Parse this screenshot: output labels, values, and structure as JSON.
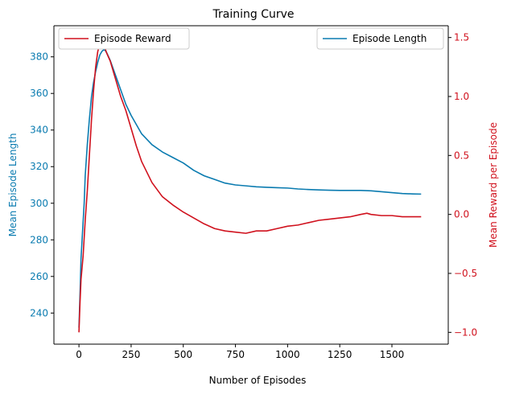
{
  "chart_data": {
    "type": "line",
    "title": "Training Curve",
    "xlabel": "Number of Episodes",
    "ylabel_left": "Mean Episode Length",
    "ylabel_right": "Mean Reward per Episode",
    "xlim": [
      -120,
      1770
    ],
    "ylim_left": [
      223,
      397
    ],
    "ylim_right": [
      -1.1,
      1.6
    ],
    "x_ticks": [
      0,
      250,
      500,
      750,
      1000,
      1250,
      1500
    ],
    "y_ticks_left": [
      240,
      260,
      280,
      300,
      320,
      340,
      360,
      380
    ],
    "y_ticks_right": [
      -1.0,
      -0.5,
      0.0,
      0.5,
      1.0,
      1.5
    ],
    "colors": {
      "left_axis": "#0a7bb0",
      "right_axis": "#d0111d",
      "length_line": "#0a7bb0",
      "reward_line": "#d0111d"
    },
    "legend_left": {
      "label": "Episode Reward",
      "placement": "top-left"
    },
    "legend_right": {
      "label": "Episode Length",
      "placement": "top-right"
    },
    "series": [
      {
        "name": "Episode Length",
        "axis": "left",
        "x": [
          0,
          5,
          10,
          15,
          20,
          25,
          30,
          40,
          50,
          60,
          70,
          80,
          90,
          100,
          110,
          120,
          130,
          150,
          175,
          200,
          225,
          250,
          275,
          300,
          350,
          400,
          450,
          500,
          550,
          600,
          650,
          700,
          750,
          800,
          850,
          900,
          950,
          1000,
          1050,
          1100,
          1150,
          1200,
          1250,
          1300,
          1350,
          1400,
          1450,
          1500,
          1550,
          1600,
          1640
        ],
        "values": [
          232,
          250,
          270,
          280,
          290,
          300,
          315,
          332,
          346,
          358,
          366,
          372,
          377,
          381,
          383,
          384,
          383,
          378,
          370,
          362,
          354,
          348,
          343,
          338,
          332,
          328,
          325,
          322,
          318,
          315,
          313,
          311,
          310,
          309.5,
          309,
          308.7,
          308.5,
          308.3,
          307.8,
          307.5,
          307.3,
          307.1,
          307,
          307,
          307,
          306.8,
          306.3,
          305.8,
          305.3,
          305.1,
          305
        ]
      },
      {
        "name": "Episode Reward",
        "axis": "right",
        "x": [
          0,
          5,
          10,
          15,
          20,
          25,
          30,
          40,
          50,
          60,
          70,
          80,
          90,
          100,
          110,
          120,
          130,
          150,
          175,
          200,
          225,
          250,
          275,
          300,
          350,
          400,
          450,
          500,
          550,
          600,
          650,
          700,
          750,
          800,
          850,
          900,
          950,
          1000,
          1050,
          1100,
          1150,
          1200,
          1250,
          1300,
          1350,
          1380,
          1400,
          1450,
          1500,
          1550,
          1600,
          1640
        ],
        "values": [
          -1.0,
          -0.75,
          -0.55,
          -0.45,
          -0.35,
          -0.2,
          -0.05,
          0.2,
          0.5,
          0.8,
          1.05,
          1.25,
          1.38,
          1.45,
          1.5,
          1.45,
          1.38,
          1.3,
          1.15,
          1.0,
          0.88,
          0.73,
          0.58,
          0.45,
          0.27,
          0.15,
          0.08,
          0.02,
          -0.03,
          -0.08,
          -0.12,
          -0.14,
          -0.15,
          -0.16,
          -0.14,
          -0.14,
          -0.12,
          -0.1,
          -0.09,
          -0.07,
          -0.05,
          -0.04,
          -0.03,
          -0.02,
          0.0,
          0.01,
          0.0,
          -0.01,
          -0.01,
          -0.02,
          -0.02,
          -0.02
        ]
      }
    ]
  }
}
